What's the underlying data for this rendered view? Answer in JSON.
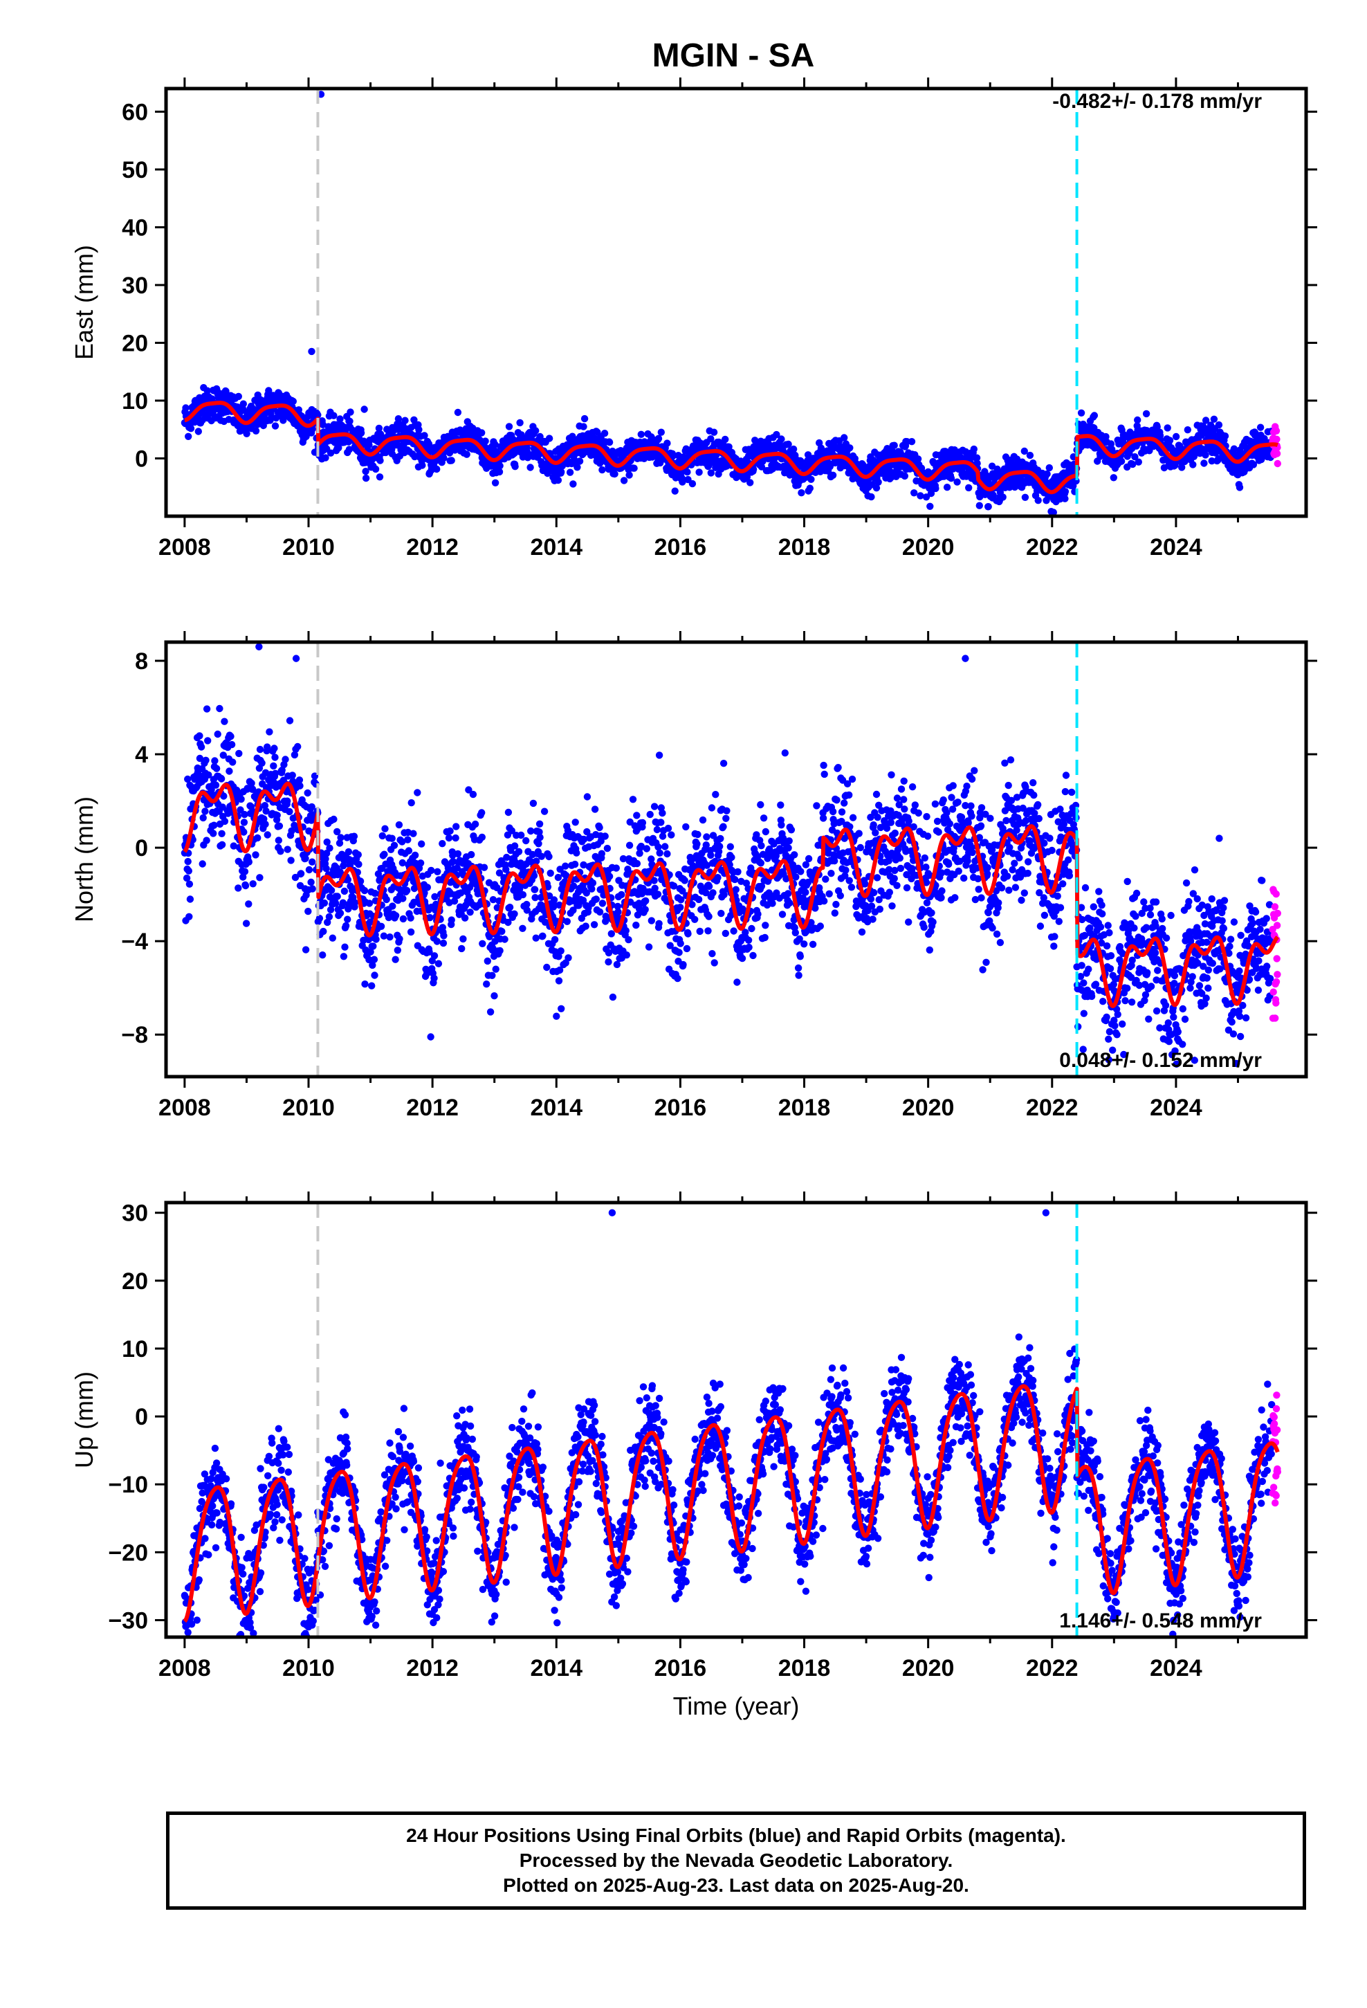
{
  "title": "MGIN - SA",
  "footer": {
    "line1": "24 Hour Positions Using Final Orbits (blue) and Rapid Orbits (magenta).",
    "line2": "Processed by the Nevada Geodetic Laboratory.",
    "line3": "Plotted on 2025-Aug-23. Last data on 2025-Aug-20."
  },
  "colors": {
    "final_orbits": "#0000ff",
    "rapid_orbits": "#ff00ff",
    "model_fit": "#ff0000",
    "equipment_change_line": "#c8c8c8",
    "earthquake_line": "#00e5ff"
  },
  "chart_data": [
    {
      "type": "scatter",
      "panel": "east",
      "ylabel": "East (mm)",
      "xlabel": "",
      "xlim": [
        2007.7,
        2026.1
      ],
      "ylim": [
        -10,
        64
      ],
      "xticks": [
        2008,
        2010,
        2012,
        2014,
        2016,
        2018,
        2020,
        2022,
        2024
      ],
      "yticks": [
        0,
        10,
        20,
        30,
        40,
        50,
        60
      ],
      "ytick_labels": [
        "0",
        "10",
        "20",
        "30",
        "40",
        "50",
        "60"
      ],
      "rate_text": "-0.482+/- 0.178 mm/yr",
      "rate_placement": "top-right",
      "vlines": [
        {
          "x": 2010.15,
          "style": "dashed",
          "color": "gray"
        },
        {
          "x": 2022.4,
          "style": "dashed",
          "color": "cyan"
        }
      ],
      "outliers": [
        {
          "x": 2010.2,
          "y": 63
        },
        {
          "x": 2010.05,
          "y": 18.5
        },
        {
          "x": 2010.9,
          "y": 8.5
        }
      ],
      "model": {
        "offset": 2.0,
        "trend": -0.482,
        "annual_amp": 1.6,
        "semiannual_amp": 0.4,
        "noise": 1.5,
        "steps": [
          {
            "x": 2010.15,
            "dy": -2.0
          },
          {
            "x": 2022.4,
            "dy": 5.5
          }
        ],
        "bumps": [
          {
            "from": 2008.0,
            "to": 2010.15,
            "dy": 2.5
          },
          {
            "from": 2020.8,
            "to": 2022.4,
            "dy": -1.2
          }
        ]
      },
      "fit_series": "red model curve",
      "grid": false
    },
    {
      "type": "scatter",
      "panel": "north",
      "ylabel": "North (mm)",
      "xlabel": "",
      "xlim": [
        2007.7,
        2026.1
      ],
      "ylim": [
        -9.8,
        8.8
      ],
      "xticks": [
        2008,
        2010,
        2012,
        2014,
        2016,
        2018,
        2020,
        2022,
        2024
      ],
      "yticks": [
        -8,
        -4,
        0,
        4,
        8
      ],
      "ytick_labels": [
        "−8",
        "−4",
        "0",
        "4",
        "8"
      ],
      "rate_text": "0.048+/- 0.152 mm/yr",
      "rate_placement": "bottom-right",
      "vlines": [
        {
          "x": 2010.15,
          "style": "dashed",
          "color": "gray"
        },
        {
          "x": 2022.4,
          "style": "dashed",
          "color": "cyan"
        }
      ],
      "outliers": [
        {
          "x": 2009.2,
          "y": 8.6
        },
        {
          "x": 2009.8,
          "y": 8.1
        },
        {
          "x": 2020.6,
          "y": 8.1
        },
        {
          "x": 2024.3,
          "y": -9.1
        }
      ],
      "model": {
        "offset": 0.5,
        "trend": 0.048,
        "annual_amp": 1.1,
        "semiannual_amp": 0.7,
        "noise": 1.3,
        "steps": [
          {
            "x": 2010.15,
            "dy": -2.2
          },
          {
            "x": 2022.4,
            "dy": -3.6
          }
        ],
        "bumps": [
          {
            "from": 2008.0,
            "to": 2010.15,
            "dy": 1.5
          },
          {
            "from": 2018.3,
            "to": 2022.4,
            "dy": 1.3
          }
        ]
      },
      "fit_series": "red model curve",
      "grid": false
    },
    {
      "type": "scatter",
      "panel": "up",
      "ylabel": "Up (mm)",
      "xlabel": "Time (year)",
      "xlim": [
        2007.7,
        2026.1
      ],
      "ylim": [
        -32.5,
        31.5
      ],
      "xticks": [
        2008,
        2010,
        2012,
        2014,
        2016,
        2018,
        2020,
        2022,
        2024
      ],
      "yticks": [
        -30,
        -20,
        -10,
        0,
        10,
        20,
        30
      ],
      "ytick_labels": [
        "−30",
        "−20",
        "−10",
        "0",
        "10",
        "20",
        "30"
      ],
      "rate_text": "1.146+/- 0.548 mm/yr",
      "rate_placement": "bottom-right",
      "vlines": [
        {
          "x": 2010.15,
          "style": "dashed",
          "color": "gray"
        },
        {
          "x": 2022.4,
          "style": "dashed",
          "color": "cyan"
        }
      ],
      "outliers": [
        {
          "x": 2008.2,
          "y": -30
        },
        {
          "x": 2010.0,
          "y": -31
        },
        {
          "x": 2014.9,
          "y": 30
        },
        {
          "x": 2021.9,
          "y": 30
        },
        {
          "x": 2018.3,
          "y": -16.5
        }
      ],
      "model": {
        "offset": -9.5,
        "trend": 1.146,
        "annual_amp": 9.5,
        "semiannual_amp": 1.5,
        "noise": 3.2,
        "steps": [
          {
            "x": 2022.4,
            "dy": -13.0
          }
        ],
        "bumps": []
      },
      "fit_series": "red model curve",
      "grid": false
    }
  ]
}
